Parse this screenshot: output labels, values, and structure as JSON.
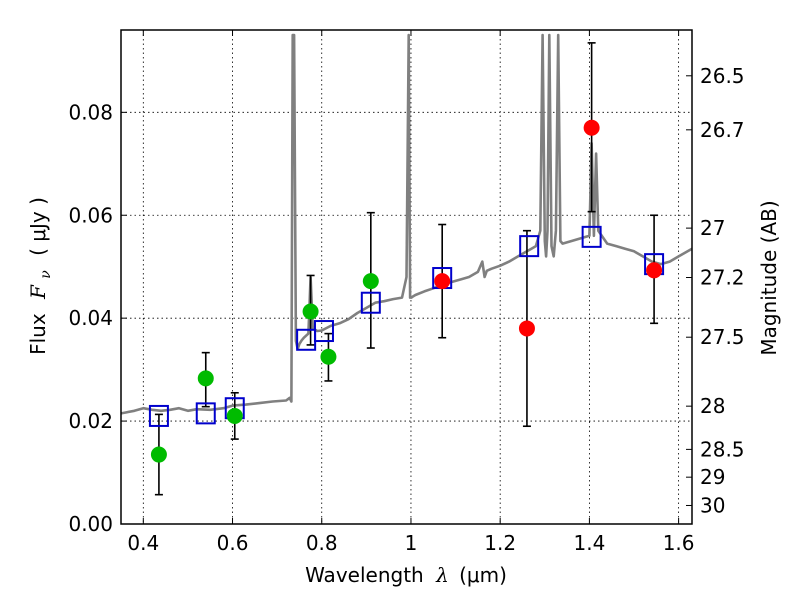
{
  "chart_data": {
    "type": "scatter",
    "xlabel": "Wavelength",
    "xlabel_symbol": "λ",
    "xlabel_unit": "(μm)",
    "ylabel": "Flux",
    "ylabel_symbol": "F",
    "ylabel_subscript": "ν",
    "ylabel_unit": "( μJy )",
    "y2label": "Magnitude (AB)",
    "xlim": [
      0.35,
      1.63
    ],
    "ylim": [
      0.0,
      0.096
    ],
    "grid": true,
    "x_ticks": [
      0.4,
      0.6,
      0.8,
      1.0,
      1.2,
      1.4,
      1.6
    ],
    "x_tick_labels": [
      "0.4",
      "0.6",
      "0.8",
      "1",
      "1.2",
      "1.4",
      "1.6"
    ],
    "y_ticks": [
      0.0,
      0.02,
      0.04,
      0.06,
      0.08
    ],
    "y_tick_labels": [
      "0.00",
      "0.02",
      "0.04",
      "0.06",
      "0.08"
    ],
    "mag_ticks": [
      {
        "label": "26.5",
        "flux": 0.0871
      },
      {
        "label": "26.7",
        "flux": 0.0766
      },
      {
        "label": "27",
        "flux": 0.0575
      },
      {
        "label": "27.2",
        "flux": 0.0479
      },
      {
        "label": "27.5",
        "flux": 0.0363
      },
      {
        "label": "28",
        "flux": 0.0229
      },
      {
        "label": "28.5",
        "flux": 0.0145
      },
      {
        "label": "29",
        "flux": 0.0091
      },
      {
        "label": "30",
        "flux": 0.0036
      }
    ],
    "series": [
      {
        "name": "model-spectrum",
        "kind": "line",
        "color": "#808080",
        "x": [
          0.35,
          0.38,
          0.4,
          0.42,
          0.44,
          0.46,
          0.48,
          0.5,
          0.52,
          0.55,
          0.58,
          0.6,
          0.63,
          0.66,
          0.69,
          0.72,
          0.728,
          0.732,
          0.735,
          0.738,
          0.742,
          0.746,
          0.75,
          0.755,
          0.76,
          0.77,
          0.775,
          0.78,
          0.79,
          0.8,
          0.82,
          0.84,
          0.86,
          0.88,
          0.9,
          0.92,
          0.94,
          0.96,
          0.98,
          0.99,
          0.995,
          0.998,
          1.001,
          1.004,
          1.01,
          1.03,
          1.05,
          1.07,
          1.09,
          1.11,
          1.13,
          1.15,
          1.16,
          1.165,
          1.17,
          1.18,
          1.2,
          1.22,
          1.24,
          1.26,
          1.27,
          1.28,
          1.29,
          1.295,
          1.3,
          1.303,
          1.306,
          1.31,
          1.315,
          1.32,
          1.325,
          1.33,
          1.335,
          1.34,
          1.36,
          1.38,
          1.4,
          1.405,
          1.41,
          1.415,
          1.42,
          1.44,
          1.46,
          1.48,
          1.5,
          1.52,
          1.54,
          1.56,
          1.58,
          1.6,
          1.63
        ],
        "y": [
          0.0215,
          0.022,
          0.0225,
          0.0222,
          0.022,
          0.0222,
          0.0225,
          0.022,
          0.0223,
          0.0222,
          0.0225,
          0.023,
          0.0232,
          0.0235,
          0.0238,
          0.024,
          0.0245,
          0.0238,
          0.095,
          0.095,
          0.0356,
          0.034,
          0.035,
          0.0357,
          0.0362,
          0.037,
          0.048,
          0.038,
          0.0375,
          0.0376,
          0.0385,
          0.039,
          0.0398,
          0.041,
          0.042,
          0.043,
          0.0433,
          0.0437,
          0.044,
          0.048,
          0.095,
          0.044,
          0.044,
          0.0442,
          0.0445,
          0.0452,
          0.0458,
          0.0465,
          0.047,
          0.0475,
          0.048,
          0.049,
          0.051,
          0.048,
          0.0492,
          0.0496,
          0.0502,
          0.051,
          0.052,
          0.053,
          0.0535,
          0.054,
          0.057,
          0.095,
          0.055,
          0.052,
          0.057,
          0.095,
          0.054,
          0.052,
          0.057,
          0.095,
          0.055,
          0.0545,
          0.055,
          0.0555,
          0.056,
          0.074,
          0.056,
          0.072,
          0.057,
          0.0545,
          0.054,
          0.0535,
          0.053,
          0.052,
          0.051,
          0.0505,
          0.051,
          0.052,
          0.0535
        ]
      },
      {
        "name": "model-photometry",
        "kind": "square",
        "color": "#0000cc",
        "x": [
          0.435,
          0.54,
          0.605,
          0.765,
          0.805,
          0.91,
          1.07,
          1.265,
          1.405,
          1.545
        ],
        "y": [
          0.021,
          0.0215,
          0.0225,
          0.0358,
          0.0375,
          0.043,
          0.0478,
          0.054,
          0.0558,
          0.0505
        ]
      },
      {
        "name": "hst-detections",
        "kind": "circle",
        "color": "#00bb00",
        "x": [
          0.435,
          0.54,
          0.605,
          0.775,
          0.815,
          0.91
        ],
        "y": [
          0.0135,
          0.0283,
          0.021,
          0.0413,
          0.0325,
          0.0472
        ],
        "err_low": [
          0.0078,
          0.0055,
          0.0045,
          0.0065,
          0.0047,
          0.013
        ],
        "err_high": [
          0.0078,
          0.005,
          0.0045,
          0.007,
          0.0045,
          0.0133
        ]
      },
      {
        "name": "ir-detections",
        "kind": "circle",
        "color": "#ff0000",
        "x": [
          1.07,
          1.26,
          1.405,
          1.545
        ],
        "y": [
          0.0472,
          0.038,
          0.077,
          0.0493
        ],
        "err_low": [
          0.011,
          0.019,
          0.0163,
          0.0103
        ],
        "err_high": [
          0.011,
          0.019,
          0.0165,
          0.0107
        ]
      }
    ]
  }
}
